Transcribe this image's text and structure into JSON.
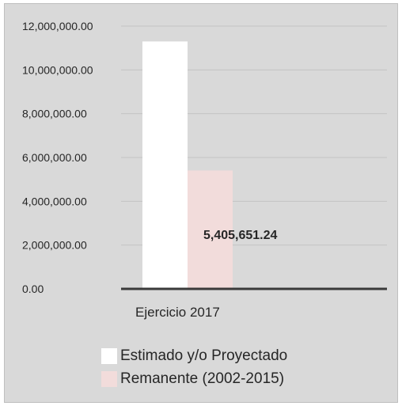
{
  "chart_data": {
    "type": "bar",
    "categories": [
      "Ejercicio 2017"
    ],
    "series": [
      {
        "name": "Estimado y/o Proyectado",
        "values": [
          11300000
        ],
        "color": "#ffffff"
      },
      {
        "name": "Remanente (2002-2015)",
        "values": [
          5405651.24
        ],
        "color": "#f2dcdb"
      }
    ],
    "data_labels": [
      {
        "series": 1,
        "category": 0,
        "text": "5,405,651.24"
      }
    ],
    "yticks": [
      "0.00",
      "2,000,000.00",
      "4,000,000.00",
      "6,000,000.00",
      "8,000,000.00",
      "10,000,000.00",
      "12,000,000.00"
    ],
    "ylim": [
      0,
      12000000
    ],
    "grid": true,
    "legend_position": "bottom",
    "title": "",
    "xlabel": "",
    "ylabel": ""
  }
}
